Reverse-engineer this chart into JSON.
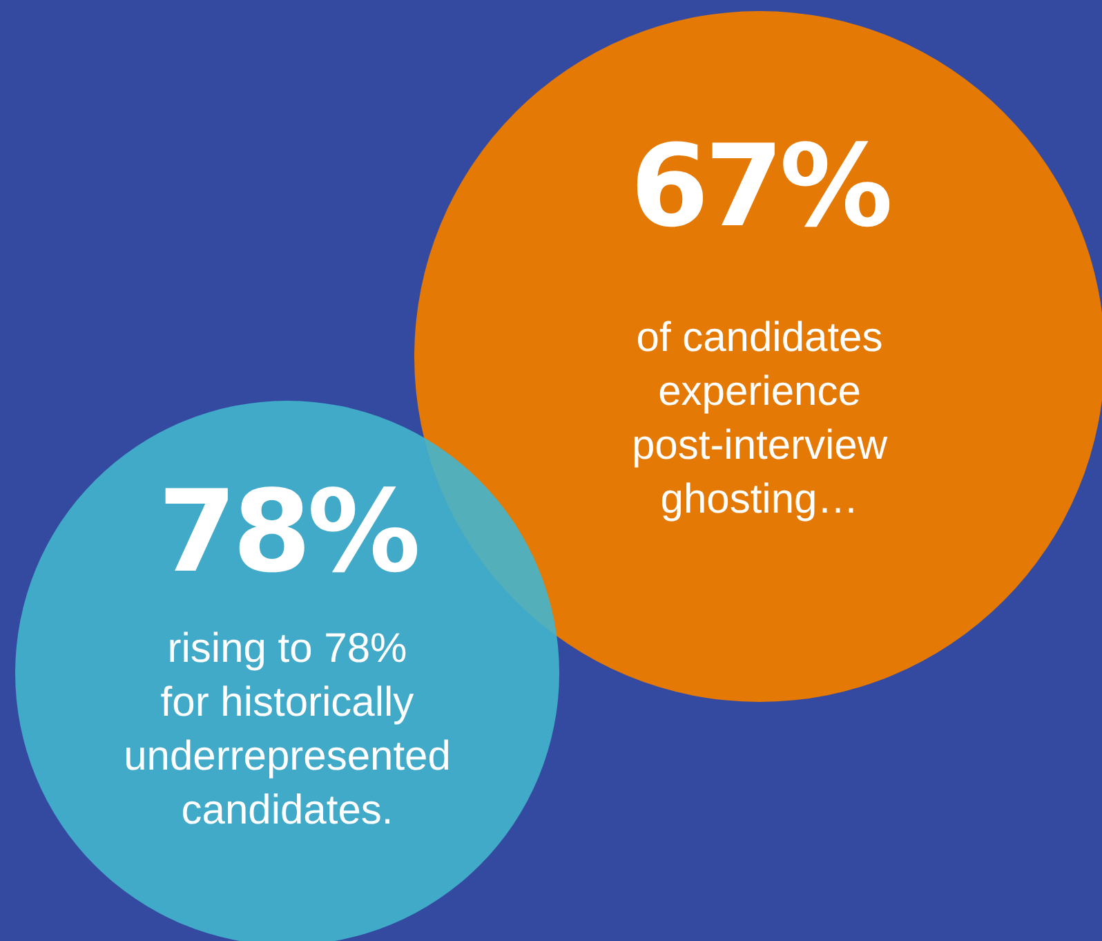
{
  "chart_data": {
    "type": "other",
    "categories": [
      "of candidates experience post-interview ghosting…",
      "rising to 78% for historically underrepresented candidates."
    ],
    "values": [
      67,
      78
    ],
    "value_labels": [
      "67%",
      "78%"
    ],
    "colors": [
      "#e57905",
      "#43b5cd"
    ]
  }
}
